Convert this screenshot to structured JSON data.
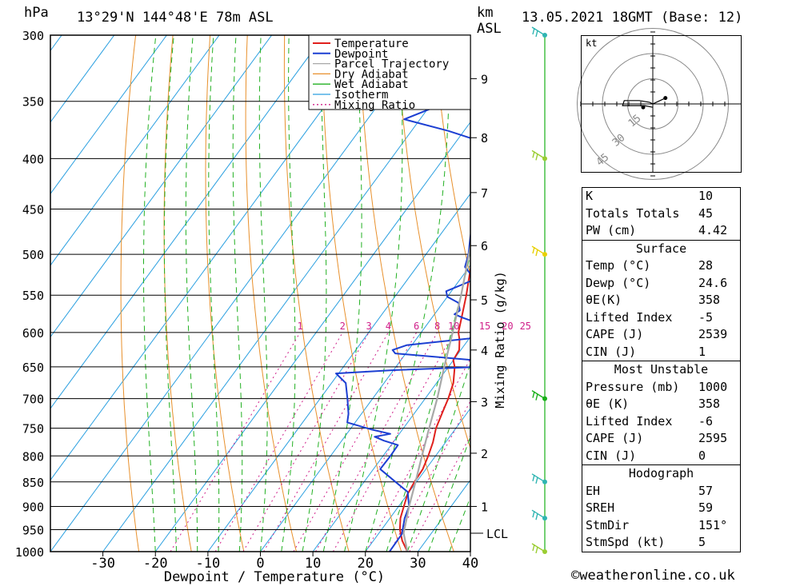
{
  "header": {
    "pressure_unit": "hPa",
    "location": "13°29'N 144°48'E 78m ASL",
    "height_unit": "km",
    "height_ref": "ASL",
    "datetime": "13.05.2021 18GMT (Base: 12)",
    "mixing_ratio_axis_label": "Mixing Ratio (g/kg)",
    "lcl_label": "LCL"
  },
  "chart_data": {
    "type": "line",
    "title": "13°29'N 144°48'E 78m ASL",
    "xlabel": "Dewpoint / Temperature (°C)",
    "ylabel": "hPa",
    "xlim": [
      -40,
      40
    ],
    "ylim": [
      1000,
      300
    ],
    "y_scale": "log",
    "x_ticks": [
      -30,
      -20,
      -10,
      0,
      10,
      20,
      30,
      40
    ],
    "pressure_levels": [
      300,
      350,
      400,
      450,
      500,
      550,
      600,
      650,
      700,
      750,
      800,
      850,
      900,
      950,
      1000
    ],
    "height_ticks_km": [
      {
        "label": "1",
        "p": 900
      },
      {
        "label": "2",
        "p": 795
      },
      {
        "label": "3",
        "p": 705
      },
      {
        "label": "4",
        "p": 625
      },
      {
        "label": "5",
        "p": 556
      },
      {
        "label": "6",
        "p": 490
      },
      {
        "label": "7",
        "p": 433
      },
      {
        "label": "8",
        "p": 381
      },
      {
        "label": "9",
        "p": 332
      }
    ],
    "lcl_pressure": 958,
    "mixing_ratio_labels": [
      "1",
      "2",
      "3",
      "4",
      "6",
      "8",
      "10",
      "15",
      "20",
      "25"
    ],
    "mixing_ratio_values": [
      1,
      2,
      3,
      4,
      6,
      8,
      10,
      15,
      20,
      25
    ],
    "legend": [
      "Temperature",
      "Dewpoint",
      "Parcel Trajectory",
      "Dry Adiabat",
      "Wet Adiabat",
      "Isotherm",
      "Mixing Ratio"
    ],
    "legend_position": "top-right",
    "series": [
      {
        "name": "Temperature",
        "color": "#e0201c",
        "points": [
          [
            1000,
            28
          ],
          [
            975,
            25.5
          ],
          [
            950,
            23.5
          ],
          [
            925,
            22
          ],
          [
            900,
            21
          ],
          [
            875,
            20
          ],
          [
            850,
            19.6
          ],
          [
            825,
            19.4
          ],
          [
            800,
            18.6
          ],
          [
            775,
            17.6
          ],
          [
            750,
            16.2
          ],
          [
            725,
            15.3
          ],
          [
            700,
            14.4
          ],
          [
            675,
            13.2
          ],
          [
            650,
            11.2
          ],
          [
            640,
            10
          ],
          [
            625,
            9.7
          ],
          [
            610,
            8.3
          ],
          [
            600,
            7.1
          ],
          [
            575,
            5.3
          ],
          [
            550,
            3.4
          ],
          [
            525,
            1.2
          ],
          [
            500,
            -1
          ],
          [
            475,
            -2.9
          ],
          [
            450,
            -5
          ],
          [
            425,
            -8.5
          ],
          [
            400,
            -12.2
          ],
          [
            375,
            -15.8
          ],
          [
            350,
            -19.7
          ],
          [
            325,
            -25.5
          ],
          [
            300,
            -31
          ]
        ]
      },
      {
        "name": "Dewpoint",
        "color": "#1c3fd2",
        "points": [
          [
            1000,
            24.6
          ],
          [
            960,
            24.5
          ],
          [
            925,
            22.8
          ],
          [
            900,
            22
          ],
          [
            870,
            19.7
          ],
          [
            850,
            16
          ],
          [
            825,
            11.3
          ],
          [
            800,
            11.4
          ],
          [
            780,
            11.3
          ],
          [
            772,
            8
          ],
          [
            765,
            5.7
          ],
          [
            760,
            8.3
          ],
          [
            752,
            4
          ],
          [
            740,
            -1.5
          ],
          [
            725,
            -2.5
          ],
          [
            700,
            -4.8
          ],
          [
            675,
            -7.3
          ],
          [
            660,
            -10.5
          ],
          [
            655,
            0
          ],
          [
            650,
            16
          ],
          [
            645,
            17.5
          ],
          [
            640,
            14
          ],
          [
            630,
            -2
          ],
          [
            625,
            -3
          ],
          [
            618,
            -1
          ],
          [
            605,
            14
          ],
          [
            598,
            15
          ],
          [
            590,
            11
          ],
          [
            580,
            6
          ],
          [
            575,
            3.8
          ],
          [
            570,
            4.3
          ],
          [
            560,
            3
          ],
          [
            552,
            0
          ],
          [
            545,
            -1
          ],
          [
            530,
            2.8
          ],
          [
            525,
            1.6
          ],
          [
            515,
            -0.8
          ],
          [
            500,
            -1.9
          ],
          [
            480,
            -4
          ],
          [
            470,
            -5
          ],
          [
            455,
            -4.6
          ],
          [
            445,
            -6
          ],
          [
            435,
            -8.4
          ],
          [
            420,
            -8.8
          ],
          [
            405,
            -10.5
          ],
          [
            400,
            -11.8
          ],
          [
            390,
            -12.4
          ],
          [
            385,
            -14.8
          ],
          [
            375,
            -23
          ],
          [
            365,
            -33
          ],
          [
            355,
            -29
          ],
          [
            348,
            -23
          ],
          [
            345,
            -33
          ],
          [
            340,
            -32
          ],
          [
            335,
            -37
          ],
          [
            330,
            -30
          ],
          [
            323,
            -30
          ],
          [
            315,
            -22
          ],
          [
            310,
            -26
          ],
          [
            305,
            -38
          ],
          [
            300,
            -40
          ]
        ]
      },
      {
        "name": "Parcel Trajectory",
        "color": "#a8a8a8",
        "points": [
          [
            1000,
            28
          ],
          [
            958,
            24.7
          ],
          [
            925,
            23.2
          ],
          [
            900,
            22
          ],
          [
            850,
            19.8
          ],
          [
            800,
            17.4
          ],
          [
            750,
            14.9
          ],
          [
            700,
            12.3
          ],
          [
            650,
            9.2
          ],
          [
            600,
            6
          ],
          [
            550,
            2.4
          ],
          [
            500,
            -1.8
          ],
          [
            450,
            -6.6
          ],
          [
            400,
            -12.4
          ],
          [
            375,
            -16
          ],
          [
            360,
            -19
          ]
        ]
      }
    ],
    "hodograph": {
      "unit_label": "kt",
      "ring_labels": [
        "15",
        "30",
        "45"
      ],
      "ring_values_kt": [
        15,
        30,
        45
      ],
      "trace": [
        [
          0,
          0
        ],
        [
          -2,
          1
        ],
        [
          -8,
          2
        ],
        [
          -17,
          2
        ],
        [
          -18,
          -1
        ],
        [
          -5,
          -1
        ],
        [
          0,
          -2
        ]
      ],
      "storm_motion": [
        7.5,
        3.5
      ]
    },
    "wind_barbs": [
      {
        "p": 1000,
        "color": "#9acd32"
      },
      {
        "p": 925,
        "color": "#2fb5b2"
      },
      {
        "p": 850,
        "color": "#2fb5b2"
      },
      {
        "p": 700,
        "color": "#18b018"
      },
      {
        "p": 500,
        "color": "#e8d000"
      },
      {
        "p": 400,
        "color": "#9acd32"
      },
      {
        "p": 300,
        "color": "#2fb5b2"
      }
    ]
  },
  "indices": {
    "general": [
      {
        "label": "K",
        "value": "10"
      },
      {
        "label": "Totals Totals",
        "value": "45"
      },
      {
        "label": "PW (cm)",
        "value": "4.42"
      }
    ],
    "surface_title": "Surface",
    "surface": [
      {
        "label": "Temp (°C)",
        "value": "28"
      },
      {
        "label": "Dewp (°C)",
        "value": "24.6"
      },
      {
        "label": "θE(K)",
        "value": "358"
      },
      {
        "label": "Lifted Index",
        "value": "-5"
      },
      {
        "label": "CAPE (J)",
        "value": "2539"
      },
      {
        "label": "CIN (J)",
        "value": "1"
      }
    ],
    "most_unstable_title": "Most Unstable",
    "most_unstable": [
      {
        "label": "Pressure (mb)",
        "value": "1000"
      },
      {
        "label": "θE (K)",
        "value": "358"
      },
      {
        "label": "Lifted Index",
        "value": "-6"
      },
      {
        "label": "CAPE (J)",
        "value": "2595"
      },
      {
        "label": "CIN (J)",
        "value": "0"
      }
    ],
    "hodograph_title": "Hodograph",
    "hodograph": [
      {
        "label": "EH",
        "value": "57"
      },
      {
        "label": "SREH",
        "value": "59"
      },
      {
        "label": "StmDir",
        "value": "151°"
      },
      {
        "label": "StmSpd (kt)",
        "value": "5"
      }
    ]
  },
  "credit": "©weatheronline.co.uk",
  "colors": {
    "temperature": "#e0201c",
    "dewpoint": "#1c3fd2",
    "parcel": "#a8a8a8",
    "dry_adiabat": "#e8902c",
    "wet_adiabat": "#22b022",
    "isotherm": "#2a9fe0",
    "mixing_ratio": "#d0208a"
  }
}
